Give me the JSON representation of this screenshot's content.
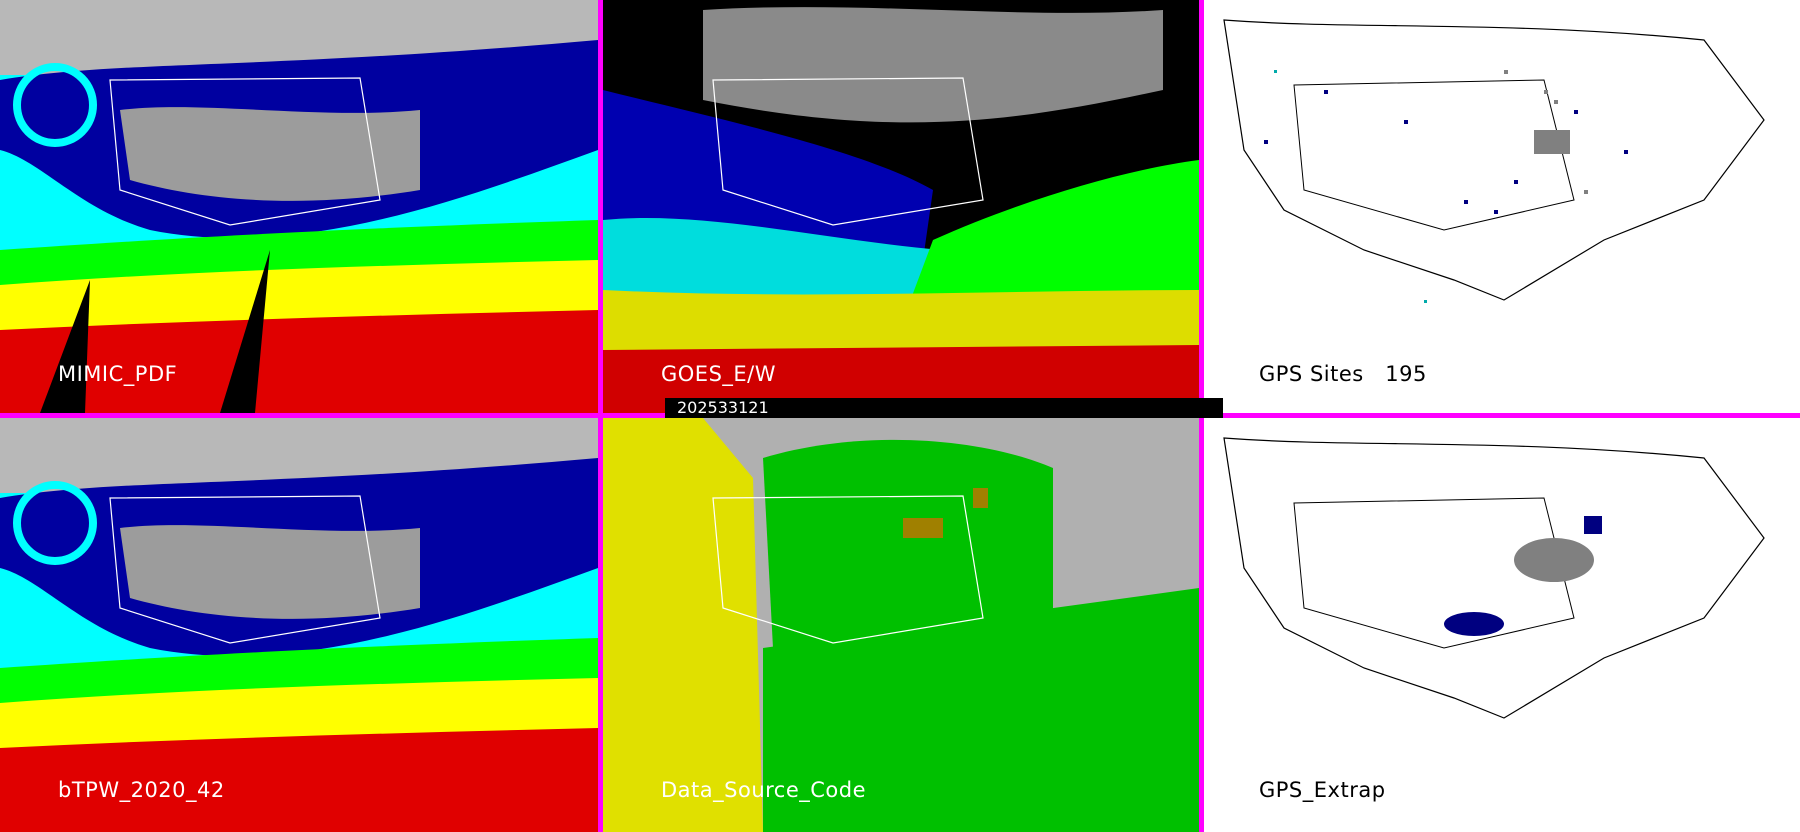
{
  "panels": {
    "top_left": {
      "label": "MIMIC_PDF"
    },
    "top_middle": {
      "label": "GOES_E/W"
    },
    "top_right": {
      "label": "GPS Sites",
      "count": "195"
    },
    "bottom_left": {
      "label": "bTPW_2020_42"
    },
    "bottom_middle": {
      "label": "Data_Source_Code"
    },
    "bottom_right": {
      "label": "GPS_Extrap"
    }
  },
  "timestamp": "202533121",
  "colors": {
    "divider": "#ff00ff",
    "tpw_scale": [
      "#808080",
      "#000080",
      "#0000ff",
      "#00ffff",
      "#00ff00",
      "#ffff00",
      "#ff0000",
      "#000000"
    ],
    "source_code": [
      "#b0b0b0",
      "#00c000",
      "#e0e000",
      "#a08000"
    ],
    "map_lines": "#ffffff"
  }
}
